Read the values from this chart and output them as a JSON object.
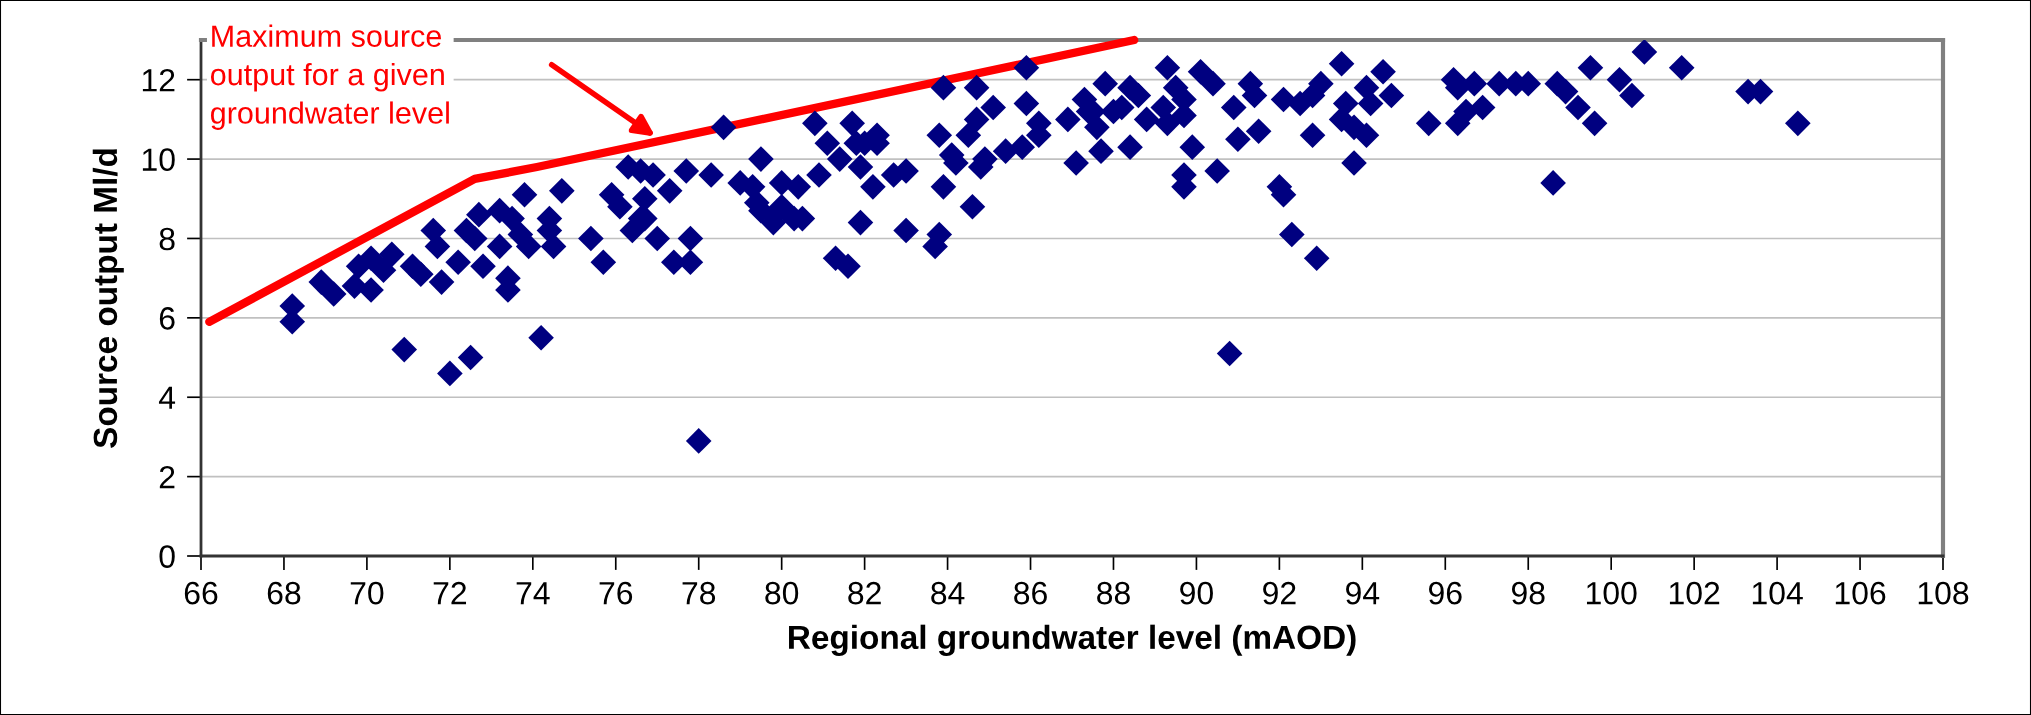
{
  "chart_data": {
    "type": "scatter",
    "xlabel": "Regional groundwater level (mAOD)",
    "ylabel": "Source output Ml/d",
    "xlim": [
      66,
      108
    ],
    "xticks": [
      66,
      68,
      70,
      72,
      74,
      76,
      78,
      80,
      82,
      84,
      86,
      88,
      90,
      92,
      94,
      96,
      98,
      100,
      102,
      104,
      106,
      108
    ],
    "ylim": [
      0,
      13
    ],
    "yticks": [
      0,
      2,
      4,
      6,
      8,
      10,
      12
    ],
    "grid": "y",
    "legend": false,
    "annotations": [
      "Maximum source\noutput for a given\ngroundwater level"
    ],
    "series": [
      {
        "color": "#000080",
        "marker": "diamond",
        "x": [
          68.2,
          68.2,
          68.9,
          69.2,
          69.7,
          69.8,
          70.1,
          70.1,
          70.4,
          70.6,
          70.9,
          71.1,
          71.3,
          71.6,
          71.7,
          71.8,
          72.0,
          72.2,
          72.4,
          72.5,
          72.7,
          72.8,
          72.6,
          73.2,
          73.2,
          73.4,
          73.4,
          73.5,
          73.7,
          73.8,
          73.9,
          74.2,
          74.4,
          74.4,
          74.5,
          74.7,
          75.4,
          75.7,
          75.9,
          76.1,
          76.3,
          76.4,
          76.6,
          76.6,
          76.7,
          76.7,
          76.9,
          77.0,
          77.3,
          77.4,
          77.8,
          77.8,
          77.7,
          78.0,
          78.3,
          78.6,
          79.0,
          79.3,
          79.5,
          79.4,
          79.5,
          79.8,
          80.0,
          80.0,
          80.3,
          80.4,
          80.5,
          80.8,
          80.9,
          81.1,
          81.3,
          81.4,
          81.6,
          81.7,
          81.8,
          81.9,
          81.9,
          82.0,
          82.2,
          82.3,
          82.3,
          82.7,
          83.0,
          83.0,
          83.7,
          83.8,
          83.9,
          83.8,
          83.9,
          84.1,
          84.2,
          84.5,
          84.6,
          84.7,
          84.7,
          84.8,
          84.9,
          85.1,
          85.4,
          85.8,
          85.9,
          85.9,
          86.2,
          86.2,
          86.9,
          87.1,
          87.3,
          87.4,
          87.5,
          87.6,
          87.7,
          87.8,
          88.0,
          88.2,
          88.4,
          88.4,
          88.6,
          88.8,
          89.2,
          89.3,
          89.3,
          89.5,
          89.7,
          89.7,
          89.9,
          89.7,
          89.7,
          90.1,
          90.4,
          90.5,
          90.8,
          90.9,
          91.0,
          91.3,
          91.4,
          91.5,
          92.0,
          92.1,
          92.1,
          92.3,
          92.5,
          92.8,
          92.9,
          93.0,
          92.8,
          93.5,
          93.6,
          93.5,
          93.8,
          93.8,
          94.1,
          94.1,
          94.2,
          94.5,
          94.7,
          95.6,
          96.2,
          96.3,
          96.3,
          96.5,
          96.7,
          96.9,
          97.3,
          97.7,
          98.0,
          98.7,
          98.6,
          98.9,
          99.2,
          99.5,
          99.6,
          100.2,
          100.5,
          100.8,
          101.7,
          103.3,
          103.6,
          104.5
        ],
        "values": [
          6.3,
          5.9,
          6.9,
          6.6,
          6.8,
          7.3,
          7.5,
          6.7,
          7.2,
          7.6,
          5.2,
          7.3,
          7.1,
          8.2,
          7.8,
          6.9,
          4.6,
          7.4,
          8.2,
          5.0,
          8.6,
          7.3,
          8.0,
          8.7,
          7.8,
          7.0,
          6.7,
          8.5,
          8.1,
          9.1,
          7.8,
          5.5,
          8.5,
          8.2,
          7.8,
          9.2,
          8.0,
          7.4,
          9.1,
          8.8,
          9.8,
          8.2,
          8.5,
          9.7,
          9.0,
          8.5,
          9.6,
          8.0,
          9.2,
          7.4,
          8.0,
          7.4,
          9.7,
          2.9,
          9.6,
          10.8,
          9.4,
          9.3,
          10.0,
          8.9,
          8.7,
          8.4,
          9.4,
          8.8,
          8.5,
          9.3,
          8.5,
          10.9,
          9.6,
          10.4,
          7.5,
          10.0,
          7.3,
          10.9,
          10.4,
          8.4,
          9.8,
          10.4,
          9.3,
          10.6,
          10.4,
          9.6,
          9.7,
          8.2,
          7.8,
          8.1,
          9.3,
          10.6,
          11.8,
          10.1,
          9.9,
          10.6,
          8.8,
          11.0,
          11.8,
          9.8,
          10.0,
          11.3,
          10.2,
          10.3,
          12.3,
          11.4,
          10.9,
          10.6,
          11.0,
          9.9,
          11.5,
          11.2,
          11.2,
          10.8,
          10.2,
          11.9,
          11.2,
          11.3,
          10.3,
          11.8,
          11.6,
          11.0,
          11.3,
          12.3,
          10.9,
          11.8,
          11.1,
          11.5,
          10.3,
          9.6,
          9.3,
          12.2,
          11.9,
          9.7,
          5.1,
          11.3,
          10.5,
          11.9,
          11.6,
          10.7,
          9.3,
          9.1,
          11.5,
          8.1,
          11.4,
          10.6,
          7.5,
          11.9,
          11.6,
          12.4,
          11.4,
          11.0,
          10.8,
          9.9,
          11.8,
          10.6,
          11.4,
          12.2,
          11.6,
          10.9,
          12.0,
          10.9,
          11.8,
          11.2,
          11.9,
          11.3,
          11.9,
          11.9,
          11.9,
          11.9,
          9.4,
          11.7,
          11.3,
          12.3,
          10.9,
          12.0,
          11.6,
          12.7,
          12.3,
          11.7,
          11.7,
          10.9
        ]
      },
      {
        "type": "line",
        "color": "#ff0000",
        "marker": "none",
        "x": [
          66.2,
          72.6,
          74.1,
          88.5
        ],
        "values": [
          5.9,
          9.5,
          9.8,
          13.0
        ]
      }
    ]
  }
}
